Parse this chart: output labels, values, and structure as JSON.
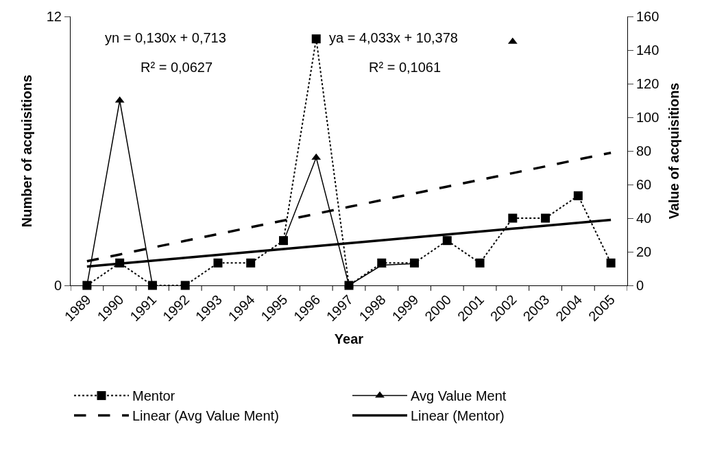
{
  "chart_data": {
    "type": "line",
    "xlabel": "Year",
    "ylabel": "Number of acquisitions",
    "y2label": "Value of acquisitions",
    "categories": [
      "1989",
      "1990",
      "1991",
      "1992",
      "1993",
      "1994",
      "1995",
      "1996",
      "1997",
      "1998",
      "1999",
      "2000",
      "2001",
      "2002",
      "2003",
      "2004",
      "2005"
    ],
    "ylim": [
      0,
      12
    ],
    "yticks": [
      0,
      12
    ],
    "y2lim": [
      0,
      160
    ],
    "y2ticks": [
      0,
      20,
      40,
      60,
      80,
      100,
      120,
      140,
      160
    ],
    "legend": "bottom",
    "series": [
      {
        "name": "Mentor",
        "color": "#000000",
        "marker": "square",
        "line_style": "dotted",
        "values": [
          0,
          1,
          0,
          0,
          1,
          1,
          2,
          11,
          0,
          1,
          1,
          2,
          1,
          3,
          3,
          4,
          1
        ]
      },
      {
        "name": "Avg Value Ment",
        "color": "#000000",
        "marker": "triangle",
        "line_style": "solid",
        "axis": "y2",
        "values": [
          0,
          110,
          0,
          null,
          null,
          null,
          26,
          76,
          0,
          12,
          13,
          null,
          null,
          145,
          null,
          null,
          null
        ]
      },
      {
        "name": "Linear (Avg Value Ment)",
        "type": "line",
        "color": "#000000",
        "marker": "none",
        "line_style": "dashed",
        "axis": "y2",
        "values": [
          14.4,
          18.4,
          22.5,
          26.5,
          30.5,
          34.6,
          38.6,
          42.6,
          46.7,
          50.7,
          54.7,
          58.8,
          62.8,
          66.8,
          70.8,
          74.9,
          78.9
        ]
      },
      {
        "name": "Linear (Mentor)",
        "type": "line",
        "color": "#000000",
        "marker": "none",
        "line_style": "solid",
        "values": [
          0.84,
          0.97,
          1.1,
          1.23,
          1.36,
          1.49,
          1.62,
          1.75,
          1.88,
          2.01,
          2.14,
          2.27,
          2.4,
          2.53,
          2.66,
          2.79,
          2.92
        ]
      }
    ],
    "annotations": [
      "yn = 0,130x + 0,713",
      "R² = 0,0627",
      "ya = 4,033x + 10,378",
      "R² = 0,1061"
    ]
  }
}
